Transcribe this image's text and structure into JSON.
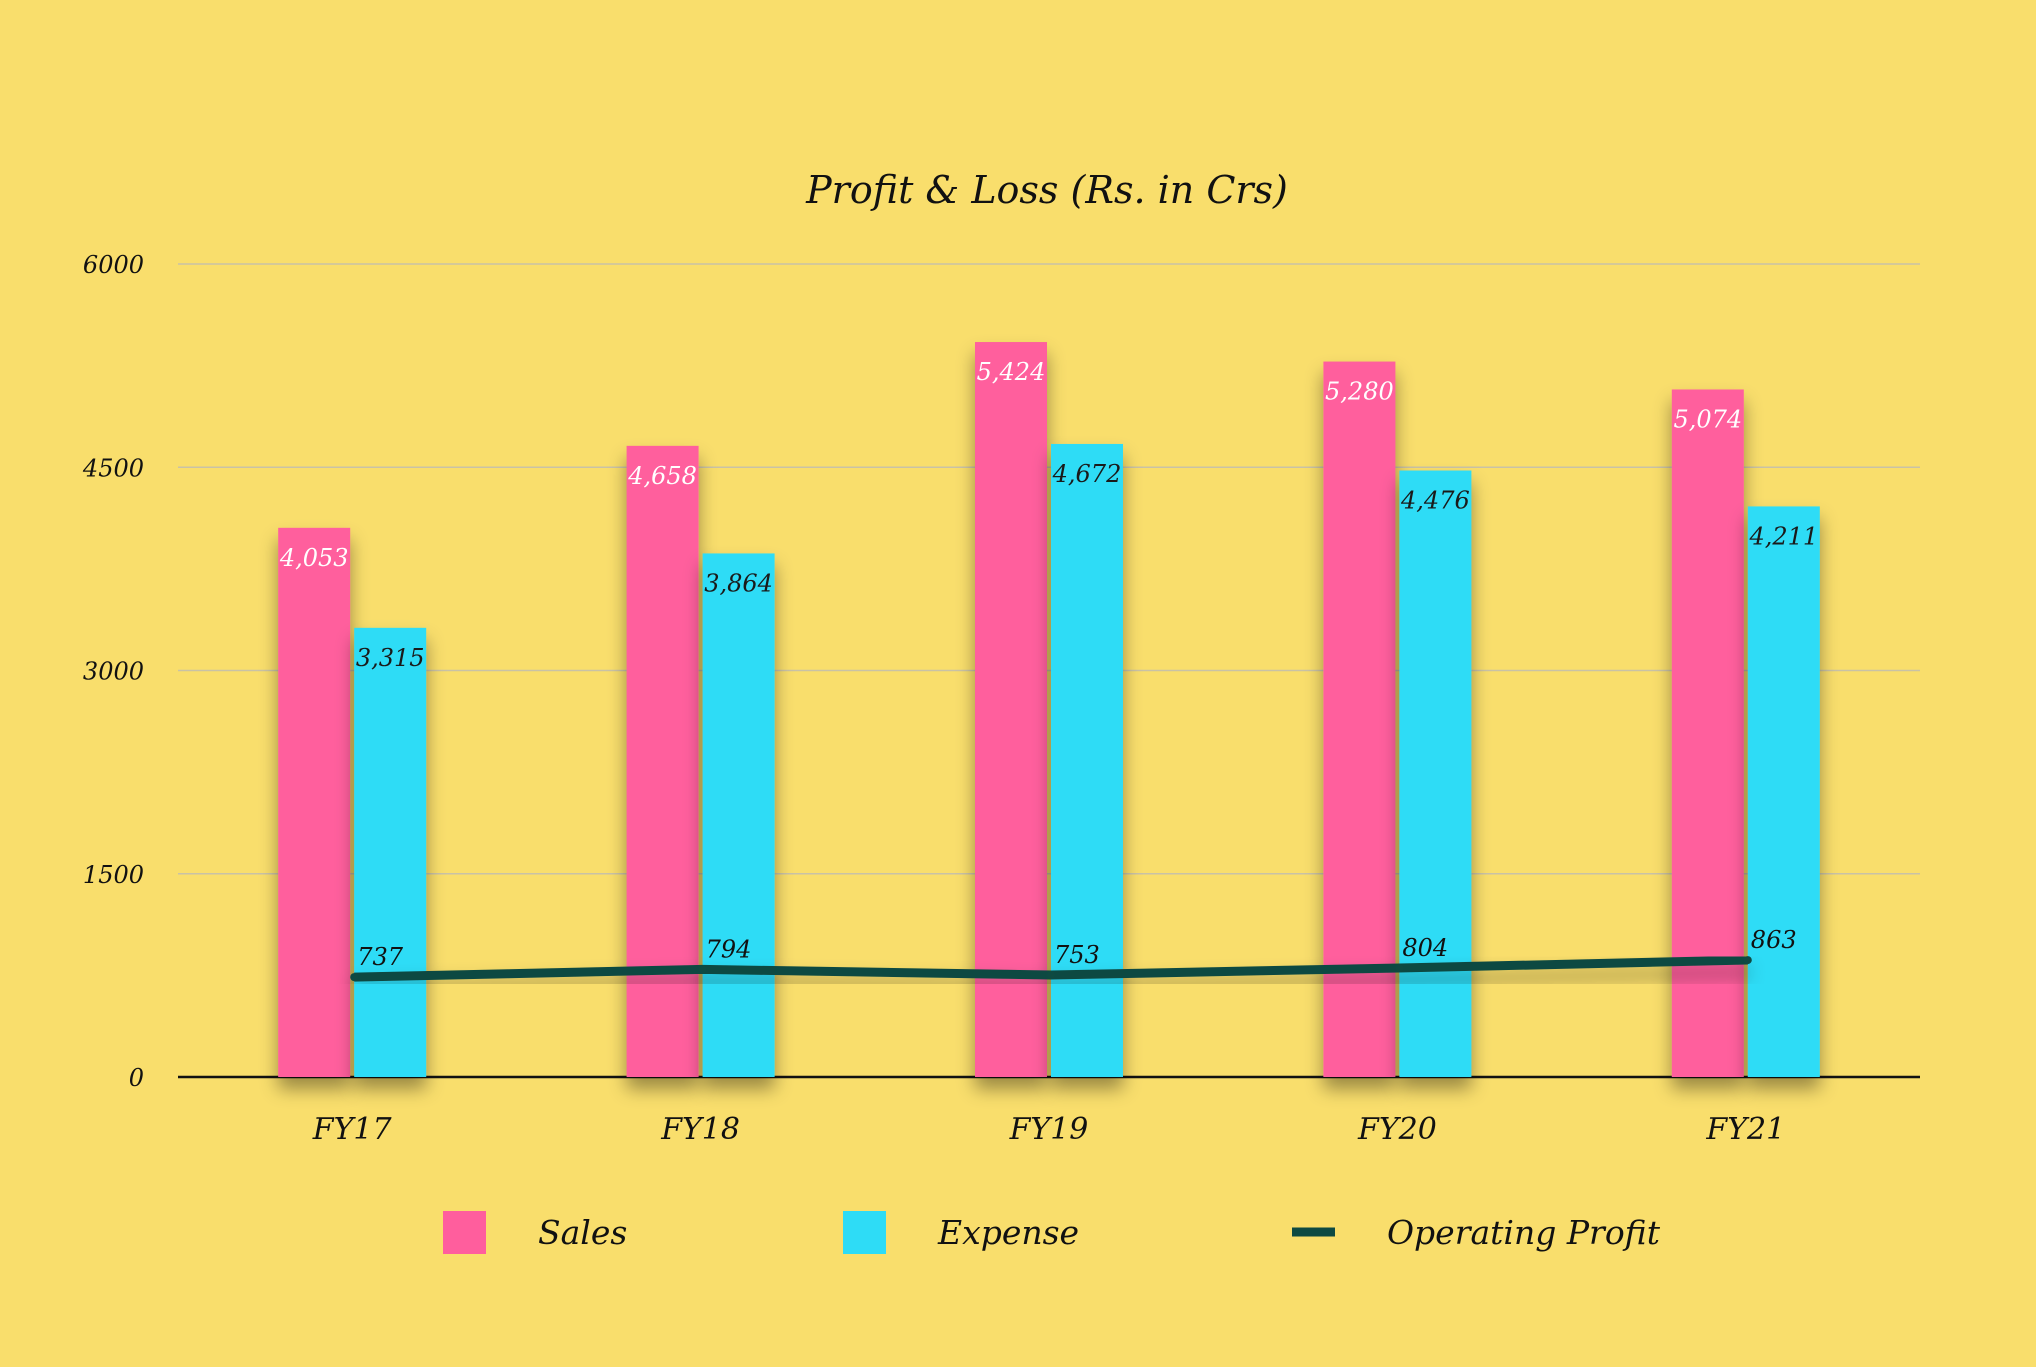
{
  "chart_data": {
    "type": "bar",
    "title": "Profit & Loss (Rs. in Crs)",
    "categories": [
      "FY17",
      "FY18",
      "FY19",
      "FY20",
      "FY21"
    ],
    "series": [
      {
        "name": "Sales",
        "type": "bar",
        "color": "#FF5E9D",
        "label_color": "#FFFFFF",
        "values": [
          4053,
          4658,
          5424,
          5280,
          5074
        ],
        "labels": [
          "4,053",
          "4,658",
          "5,424",
          "5,280",
          "5,074"
        ]
      },
      {
        "name": "Expense",
        "type": "bar",
        "color": "#2EDCF6",
        "label_color": "#1A1A1A",
        "values": [
          3315,
          3864,
          4672,
          4476,
          4211
        ],
        "labels": [
          "3,315",
          "3,864",
          "4,672",
          "4,476",
          "4,211"
        ]
      },
      {
        "name": "Operating Profit",
        "type": "line",
        "color": "#0E4A42",
        "label_color": "#111111",
        "values": [
          737,
          794,
          753,
          804,
          863
        ],
        "labels": [
          "737",
          "794",
          "753",
          "804",
          "863"
        ]
      }
    ],
    "y_ticks": [
      "0",
      "1500",
      "3000",
      "4500",
      "6000"
    ],
    "ylim": [
      0,
      6000
    ],
    "grid": true,
    "legend_position": "bottom",
    "background": "#F9DE6C"
  }
}
